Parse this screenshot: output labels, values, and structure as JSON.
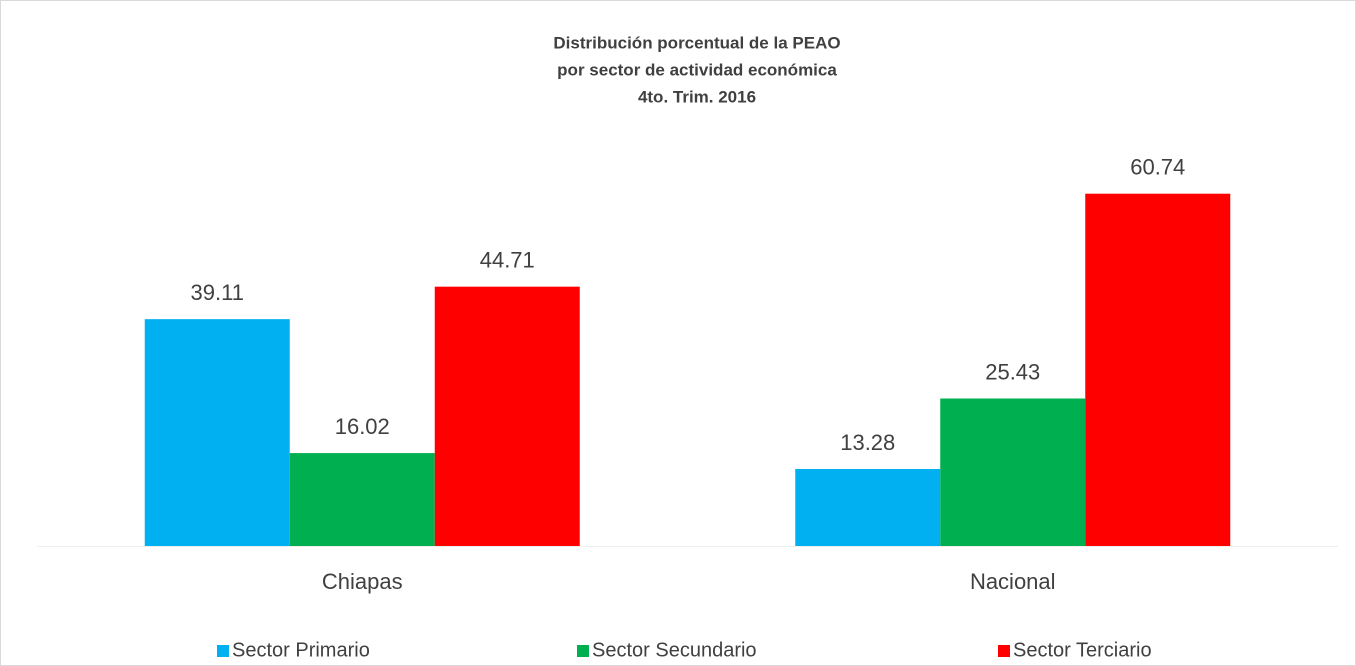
{
  "chart_data": {
    "type": "bar",
    "title": [
      "Distribución porcentual de la PEAO",
      "por sector de actividad económica",
      "4to. Trim. 2016"
    ],
    "categories": [
      "Chiapas",
      "Nacional"
    ],
    "series": [
      {
        "name": "Sector Primario",
        "color": "#00b0f0",
        "values": [
          39.11,
          13.28
        ]
      },
      {
        "name": "Sector Secundario",
        "color": "#00b050",
        "values": [
          16.02,
          25.43
        ]
      },
      {
        "name": "Sector Terciario",
        "color": "#ff0000",
        "values": [
          44.71,
          60.74
        ]
      }
    ],
    "ylim": [
      0,
      70
    ],
    "grid": false,
    "legend": "bottom"
  }
}
